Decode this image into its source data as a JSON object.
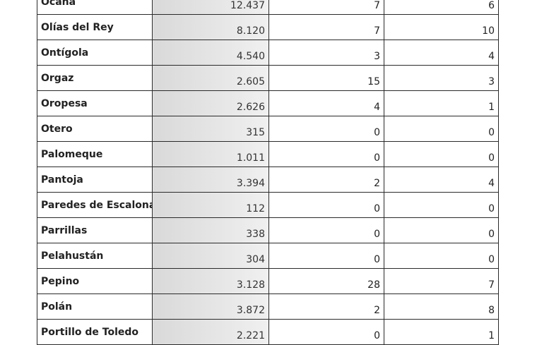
{
  "rows": [
    {
      "name": "Ocaña",
      "population": "12.437",
      "col3": "7",
      "col4": "6"
    },
    {
      "name": "Olías del Rey",
      "population": "8.120",
      "col3": "7",
      "col4": "10"
    },
    {
      "name": "Ontígola",
      "population": "4.540",
      "col3": "3",
      "col4": "4"
    },
    {
      "name": "Orgaz",
      "population": "2.605",
      "col3": "15",
      "col4": "3"
    },
    {
      "name": "Oropesa",
      "population": "2.626",
      "col3": "4",
      "col4": "1"
    },
    {
      "name": "Otero",
      "population": "315",
      "col3": "0",
      "col4": "0"
    },
    {
      "name": "Palomeque",
      "population": "1.011",
      "col3": "0",
      "col4": "0"
    },
    {
      "name": "Pantoja",
      "population": "3.394",
      "col3": "2",
      "col4": "4"
    },
    {
      "name": "Paredes de Escalona",
      "population": "112",
      "col3": "0",
      "col4": "0"
    },
    {
      "name": "Parrillas",
      "population": "338",
      "col3": "0",
      "col4": "0"
    },
    {
      "name": "Pelahustán",
      "population": "304",
      "col3": "0",
      "col4": "0"
    },
    {
      "name": "Pepino",
      "population": "3.128",
      "col3": "28",
      "col4": "7"
    },
    {
      "name": "Polán",
      "population": "3.872",
      "col3": "2",
      "col4": "8"
    },
    {
      "name": "Portillo de Toledo",
      "population": "2.221",
      "col3": "0",
      "col4": "1"
    }
  ]
}
